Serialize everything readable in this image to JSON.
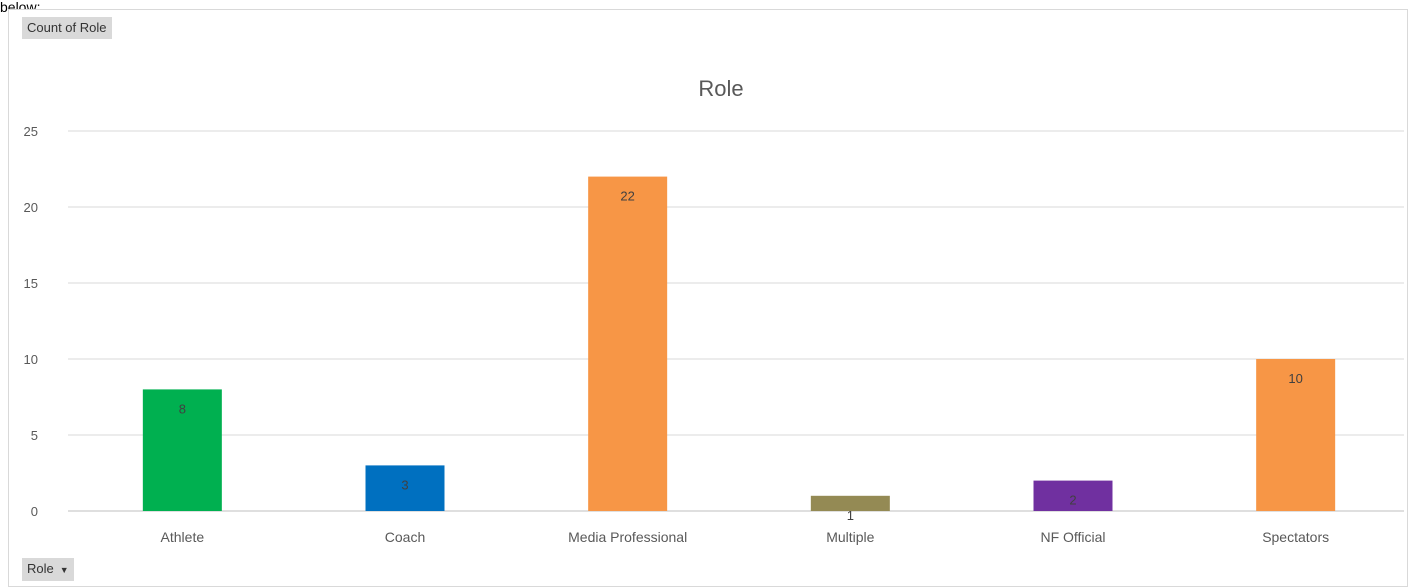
{
  "top_caption": "below:",
  "field_buttons": {
    "values": "Count of Role",
    "axis": "Role"
  },
  "colors": {
    "grid": "#d9d9d9",
    "axis": "#bfbfbf"
  },
  "chart_data": {
    "type": "bar",
    "title": "Role",
    "categories": [
      "Athlete",
      "Coach",
      "Media Professional",
      "Multiple",
      "NF Official",
      "Spectators"
    ],
    "values": [
      8,
      3,
      22,
      1,
      2,
      10
    ],
    "bar_colors": [
      "#00b050",
      "#0070c0",
      "#f79646",
      "#948a54",
      "#7030a0",
      "#f79646"
    ],
    "ylim": [
      0,
      25
    ],
    "yticks": [
      0,
      5,
      10,
      15,
      20,
      25
    ],
    "grid": true,
    "legend": "none",
    "xlabel": "",
    "ylabel": ""
  }
}
